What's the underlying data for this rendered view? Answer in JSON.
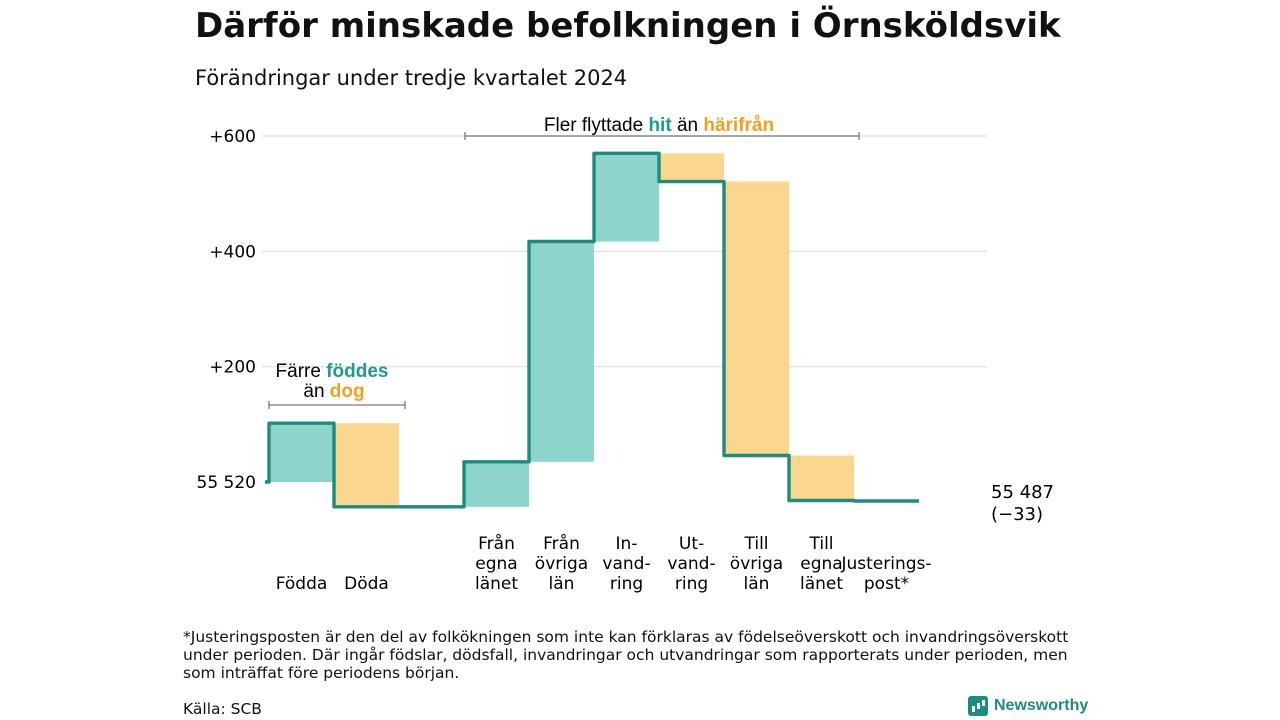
{
  "header": {
    "title": "Därför minskade befolkningen i Örnsköldsvik",
    "subtitle": "Förändringar under tredje kvartalet 2024"
  },
  "annotations": {
    "births_bracket": {
      "line1": "Färre",
      "hl1": "föddes",
      "line2": "än",
      "hl2": "dog"
    },
    "migration_bracket": {
      "prefix": "Fler flyttade",
      "hl1": "hit",
      "mid": "än",
      "hl2": "härifrån"
    },
    "end_value": "55 487",
    "end_change": "(−33)"
  },
  "colors": {
    "increase": "#8dd5cb",
    "decrease": "#fad68e",
    "line": "#1f8a7e",
    "teal_text": "#1f9a8c",
    "orange_text": "#f0a020",
    "grid": "#dddddd"
  },
  "chart_data": {
    "type": "waterfall",
    "title": "Därför minskade befolkningen i Örnsköldsvik",
    "subtitle": "Förändringar under tredje kvartalet 2024",
    "baseline": 55520,
    "end_total": 55487,
    "net_change": -33,
    "ylim": [
      -45,
      620
    ],
    "yticks": [
      {
        "value": 0,
        "label": "55 520"
      },
      {
        "value": 200,
        "label": "+200"
      },
      {
        "value": 400,
        "label": "+400"
      },
      {
        "value": 600,
        "label": "+600"
      }
    ],
    "grid": true,
    "steps": [
      {
        "label": [
          "Födda"
        ],
        "change": 102,
        "kind": "increase"
      },
      {
        "label": [
          "Döda"
        ],
        "change": -145,
        "kind": "decrease"
      },
      {
        "label": [
          "Från",
          "egna",
          "länet"
        ],
        "change": 78,
        "kind": "increase"
      },
      {
        "label": [
          "Från",
          "övriga",
          "län"
        ],
        "change": 382,
        "kind": "increase"
      },
      {
        "label": [
          "In-",
          "vand-",
          "ring"
        ],
        "change": 153,
        "kind": "increase"
      },
      {
        "label": [
          "Ut-",
          "vand-",
          "ring"
        ],
        "change": -49,
        "kind": "decrease"
      },
      {
        "label": [
          "Till",
          "övriga",
          "län"
        ],
        "change": -475,
        "kind": "decrease"
      },
      {
        "label": [
          "Till",
          "egna",
          "länet"
        ],
        "change": -78,
        "kind": "decrease"
      },
      {
        "label": [
          "Justerings-",
          "post*"
        ],
        "change": -1,
        "kind": "adjustment"
      }
    ]
  },
  "footer": {
    "footnote": "*Justeringsposten är den del av folkökningen som inte kan förklaras av födelseöverskott och invandringsöverskott under perioden. Där ingår födslar, dödsfall, invandringar och utvandringar som rapporterats under perioden, men som inträffat före periodens början.",
    "source": "Källa: SCB",
    "brand": "Newsworthy"
  }
}
